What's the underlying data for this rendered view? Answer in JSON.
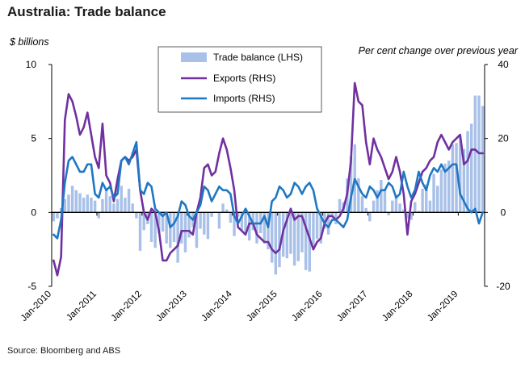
{
  "title": "Australia: Trade balance",
  "source": "Source: Bloomberg and ABS",
  "chart_data": {
    "type": "bar",
    "left_axis": {
      "label": "$ billions",
      "range": [
        -5,
        10
      ],
      "ticks": [
        "-5",
        "0",
        "5",
        "10"
      ]
    },
    "right_axis": {
      "label": "Per cent change over previous year",
      "range": [
        -20,
        40
      ],
      "ticks": [
        "-20",
        "0",
        "20",
        "40"
      ]
    },
    "x_ticks": [
      "Jan-2010",
      "Jan-2011",
      "Jan-2012",
      "Jan-2013",
      "Jan-2014",
      "Jan-2015",
      "Jan-2016",
      "Jan-2017",
      "Jan-2018",
      "Jan-2019"
    ],
    "x_start": "2010-01",
    "months": 115,
    "legend": {
      "position": "top-center"
    },
    "colors": {
      "bars": "#a9c1e8",
      "exports": "#7030a0",
      "imports": "#1f77c4"
    },
    "series": [
      {
        "name": "Trade balance (LHS)",
        "axis": "left",
        "kind": "bar",
        "values": [
          -0.6,
          -0.4,
          0.3,
          0.9,
          1.2,
          1.8,
          1.5,
          1.3,
          1.0,
          1.2,
          1.0,
          0.8,
          -0.4,
          0.9,
          1.6,
          1.1,
          0.6,
          0.9,
          1.8,
          1.0,
          1.6,
          0.6,
          -0.4,
          -2.6,
          -1.2,
          -0.8,
          -2.0,
          -2.4,
          -1.4,
          -1.3,
          -2.1,
          -2.4,
          -2.0,
          -3.4,
          -2.1,
          -2.7,
          -1.7,
          -1.0,
          -2.4,
          -1.1,
          -1.5,
          -1.8,
          -0.3,
          0.0,
          -1.1,
          0.6,
          0.2,
          -0.7,
          -1.6,
          -0.3,
          -1.2,
          -1.4,
          -1.9,
          -1.2,
          -2.1,
          -1.4,
          -2.1,
          -2.5,
          -3.4,
          -4.2,
          -3.7,
          -3.0,
          -3.1,
          -2.8,
          -3.6,
          -3.3,
          -2.7,
          -3.9,
          -4.0,
          -2.3,
          -1.8,
          -2.1,
          -1.1,
          -1.5,
          -0.3,
          -0.8,
          0.9,
          0.7,
          2.3,
          3.8,
          4.6,
          2.3,
          1.1,
          0.3,
          -0.6,
          0.8,
          1.5,
          2.2,
          1.6,
          -0.2,
          0.8,
          1.1,
          0.6,
          0.2,
          -0.4,
          -0.5,
          0.7,
          0.1,
          1.6,
          1.9,
          0.8,
          2.6,
          1.8,
          2.9,
          3.3,
          3.5,
          4.6,
          4.7,
          5.1,
          4.3,
          5.5,
          6.0,
          7.9,
          7.9,
          7.2
        ]
      },
      {
        "name": "Exports (RHS)",
        "axis": "right",
        "kind": "line",
        "values": [
          -13,
          -17,
          -12,
          25,
          32,
          30,
          26,
          21,
          23,
          27,
          21,
          15,
          12,
          24,
          10,
          8,
          3,
          9,
          14,
          15,
          14,
          15,
          17,
          6,
          0,
          -2,
          1,
          0,
          -5,
          -13,
          -13,
          -11,
          -10,
          -9,
          -5,
          -5,
          -5,
          -6,
          0,
          4,
          12,
          13,
          10,
          11,
          16,
          20,
          17,
          12,
          6,
          -4,
          -5,
          -6,
          -3,
          -3,
          -6,
          -7,
          -8,
          -8,
          -10,
          -11,
          -10,
          -5,
          -2,
          1,
          -2,
          -1,
          -1,
          -4,
          -7,
          -10,
          -8,
          -7,
          -3,
          -1,
          -1,
          -2,
          -1,
          1,
          5,
          14,
          35,
          30,
          29,
          19,
          13,
          20,
          17,
          15,
          12,
          9,
          11,
          15,
          11,
          5,
          -6,
          3,
          5,
          8,
          11,
          12,
          14,
          15,
          19,
          21,
          19,
          17,
          19,
          20,
          21,
          13,
          14,
          17,
          17,
          16,
          16
        ]
      },
      {
        "name": "Imports (RHS)",
        "axis": "right",
        "kind": "line",
        "values": [
          -6,
          -7,
          -2,
          8,
          14,
          15,
          13,
          11,
          11,
          13,
          13,
          5,
          4,
          8,
          6,
          7,
          4,
          5,
          14,
          15,
          13,
          16,
          19,
          6,
          5,
          8,
          7,
          1,
          0,
          -1,
          0,
          -4,
          -3,
          -1,
          3,
          2,
          -1,
          -2,
          0,
          2,
          7,
          6,
          3,
          5,
          7,
          6,
          6,
          5,
          -1,
          -3,
          -1,
          1,
          -1,
          -3,
          -3,
          -3,
          -1,
          -4,
          3,
          4,
          7,
          6,
          4,
          5,
          8,
          7,
          5,
          7,
          8,
          6,
          1,
          -1,
          -3,
          -4,
          -2,
          -2,
          -3,
          -4,
          -2,
          4,
          9,
          7,
          5,
          4,
          7,
          6,
          4,
          6,
          6,
          8,
          7,
          4,
          5,
          11,
          7,
          4,
          6,
          11,
          8,
          6,
          10,
          12,
          11,
          13,
          11,
          12,
          13,
          13,
          5,
          3,
          1,
          0,
          1,
          -3,
          0
        ]
      }
    ]
  }
}
